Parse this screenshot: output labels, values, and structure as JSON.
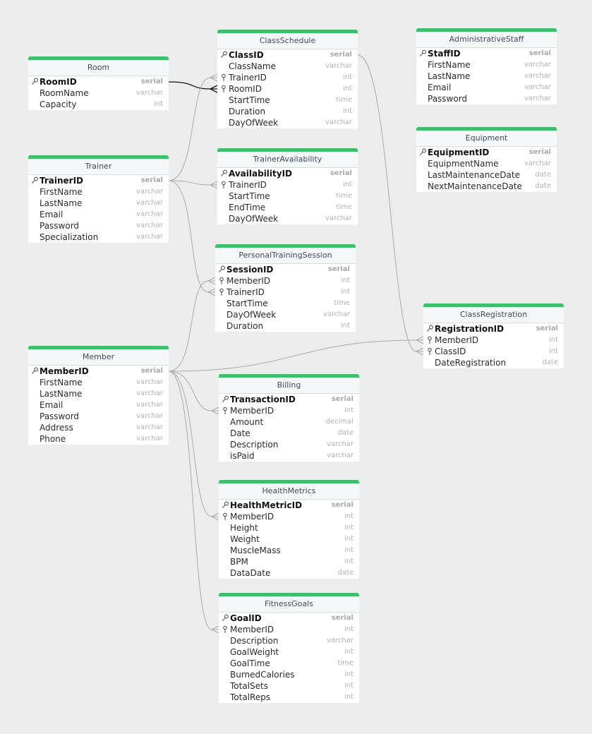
{
  "tables": [
    {
      "id": "room",
      "name": "Room",
      "fields": [
        {
          "name": "RoomID",
          "type": "serial",
          "pk": true
        },
        {
          "name": "RoomName",
          "type": "varchar"
        },
        {
          "name": "Capacity",
          "type": "int"
        }
      ]
    },
    {
      "id": "trainer",
      "name": "Trainer",
      "fields": [
        {
          "name": "TrainerID",
          "type": "serial",
          "pk": true
        },
        {
          "name": "FirstName",
          "type": "varchar"
        },
        {
          "name": "LastName",
          "type": "varchar"
        },
        {
          "name": "Email",
          "type": "varchar"
        },
        {
          "name": "Password",
          "type": "varchar"
        },
        {
          "name": "Specialization",
          "type": "varchar"
        }
      ]
    },
    {
      "id": "member",
      "name": "Member",
      "fields": [
        {
          "name": "MemberID",
          "type": "serial",
          "pk": true
        },
        {
          "name": "FirstName",
          "type": "varchar"
        },
        {
          "name": "LastName",
          "type": "varchar"
        },
        {
          "name": "Email",
          "type": "varchar"
        },
        {
          "name": "Password",
          "type": "varchar"
        },
        {
          "name": "Address",
          "type": "varchar"
        },
        {
          "name": "Phone",
          "type": "varchar"
        }
      ]
    },
    {
      "id": "classschedule",
      "name": "ClassSchedule",
      "fields": [
        {
          "name": "ClassID",
          "type": "serial",
          "pk": true
        },
        {
          "name": "ClassName",
          "type": "varchar"
        },
        {
          "name": "TrainerID",
          "type": "int",
          "fk": true
        },
        {
          "name": "RoomID",
          "type": "int",
          "fk": true
        },
        {
          "name": "StartTime",
          "type": "time"
        },
        {
          "name": "Duration",
          "type": "int"
        },
        {
          "name": "DayOfWeek",
          "type": "varchar"
        }
      ]
    },
    {
      "id": "traineravailability",
      "name": "TrainerAvailability",
      "fields": [
        {
          "name": "AvailabilityID",
          "type": "serial",
          "pk": true
        },
        {
          "name": "TrainerID",
          "type": "int",
          "fk": true
        },
        {
          "name": "StartTime",
          "type": "time"
        },
        {
          "name": "EndTime",
          "type": "time"
        },
        {
          "name": "DayOfWeek",
          "type": "varchar"
        }
      ]
    },
    {
      "id": "personaltrainingsession",
      "name": "PersonalTrainingSession",
      "fields": [
        {
          "name": "SessionID",
          "type": "serial",
          "pk": true
        },
        {
          "name": "MemberID",
          "type": "int",
          "fk": true
        },
        {
          "name": "TrainerID",
          "type": "int",
          "fk": true
        },
        {
          "name": "StartTime",
          "type": "time"
        },
        {
          "name": "DayOfWeek",
          "type": "varchar"
        },
        {
          "name": "Duration",
          "type": "int"
        }
      ]
    },
    {
      "id": "billing",
      "name": "Billing",
      "fields": [
        {
          "name": "TransactionID",
          "type": "serial",
          "pk": true
        },
        {
          "name": "MemberID",
          "type": "int",
          "fk": true
        },
        {
          "name": "Amount",
          "type": "decimal"
        },
        {
          "name": "Date",
          "type": "date"
        },
        {
          "name": "Description",
          "type": "varchar"
        },
        {
          "name": "isPaid",
          "type": "varchar"
        }
      ]
    },
    {
      "id": "healthmetrics",
      "name": "HealthMetrics",
      "fields": [
        {
          "name": "HealthMetricID",
          "type": "serial",
          "pk": true
        },
        {
          "name": "MemberID",
          "type": "int",
          "fk": true
        },
        {
          "name": "Height",
          "type": "int"
        },
        {
          "name": "Weight",
          "type": "int"
        },
        {
          "name": "MuscleMass",
          "type": "int"
        },
        {
          "name": "BPM",
          "type": "int"
        },
        {
          "name": "DataDate",
          "type": "date"
        }
      ]
    },
    {
      "id": "fitnessgoals",
      "name": "FitnessGoals",
      "fields": [
        {
          "name": "GoalID",
          "type": "serial",
          "pk": true
        },
        {
          "name": "MemberID",
          "type": "int",
          "fk": true
        },
        {
          "name": "Description",
          "type": "varchar"
        },
        {
          "name": "GoalWeight",
          "type": "int"
        },
        {
          "name": "GoalTime",
          "type": "time"
        },
        {
          "name": "BurnedCalories",
          "type": "int"
        },
        {
          "name": "TotalSets",
          "type": "int"
        },
        {
          "name": "TotalReps",
          "type": "int"
        }
      ]
    },
    {
      "id": "administrativestaff",
      "name": "AdministrativeStaff",
      "fields": [
        {
          "name": "StaffID",
          "type": "serial",
          "pk": true
        },
        {
          "name": "FirstName",
          "type": "varchar"
        },
        {
          "name": "LastName",
          "type": "varchar"
        },
        {
          "name": "Email",
          "type": "varchar"
        },
        {
          "name": "Password",
          "type": "varchar"
        }
      ]
    },
    {
      "id": "equipment",
      "name": "Equipment",
      "fields": [
        {
          "name": "EquipmentID",
          "type": "serial",
          "pk": true
        },
        {
          "name": "EquipmentName",
          "type": "varchar"
        },
        {
          "name": "LastMaintenanceDate",
          "type": "date"
        },
        {
          "name": "NextMaintenanceDate",
          "type": "date"
        }
      ]
    },
    {
      "id": "classregistration",
      "name": "ClassRegistration",
      "fields": [
        {
          "name": "RegistrationID",
          "type": "serial",
          "pk": true
        },
        {
          "name": "MemberID",
          "type": "int",
          "fk": true
        },
        {
          "name": "ClassID",
          "type": "int",
          "fk": true
        },
        {
          "name": "DateRegistration",
          "type": "date"
        }
      ]
    }
  ],
  "relationships": [
    {
      "from": "room.RoomID",
      "to": "classschedule.RoomID",
      "highlighted": true
    },
    {
      "from": "trainer.TrainerID",
      "to": "classschedule.TrainerID"
    },
    {
      "from": "trainer.TrainerID",
      "to": "traineravailability.TrainerID"
    },
    {
      "from": "trainer.TrainerID",
      "to": "personaltrainingsession.TrainerID"
    },
    {
      "from": "member.MemberID",
      "to": "personaltrainingsession.MemberID"
    },
    {
      "from": "member.MemberID",
      "to": "classregistration.MemberID"
    },
    {
      "from": "member.MemberID",
      "to": "billing.MemberID"
    },
    {
      "from": "member.MemberID",
      "to": "healthmetrics.MemberID"
    },
    {
      "from": "member.MemberID",
      "to": "fitnessgoals.MemberID"
    },
    {
      "from": "classschedule.ClassID",
      "to": "classregistration.ClassID"
    }
  ],
  "colors": {
    "header_accent": "#3dbf6e",
    "background": "#ececec",
    "link": "#aaaaaa",
    "link_highlight": "#111111"
  }
}
